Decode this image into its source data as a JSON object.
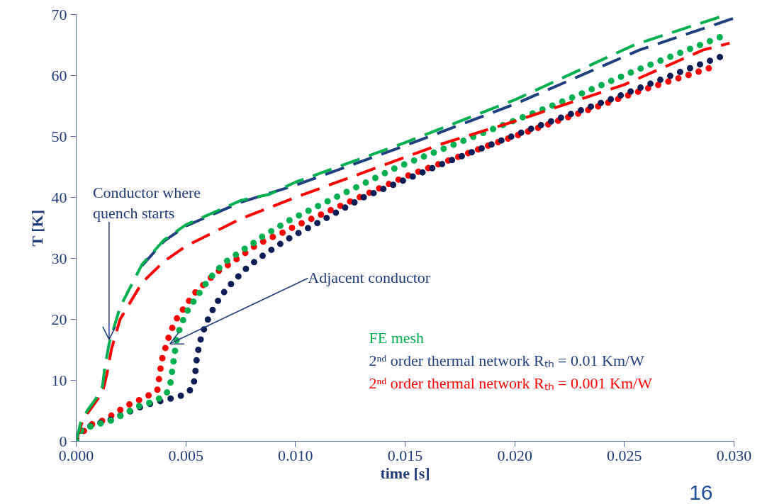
{
  "chart_data": {
    "type": "line",
    "xlabel": "time [s]",
    "ylabel": "T [K]",
    "xlim": [
      0,
      0.03
    ],
    "ylim": [
      0,
      70
    ],
    "xticks": [
      {
        "value": 0,
        "label": "0.000"
      },
      {
        "value": 0.005,
        "label": "0.005"
      },
      {
        "value": 0.01,
        "label": "0.010"
      },
      {
        "value": 0.015,
        "label": "0.015"
      },
      {
        "value": 0.02,
        "label": "0.020"
      },
      {
        "value": 0.025,
        "label": "0.025"
      },
      {
        "value": 0.03,
        "label": "0.030"
      }
    ],
    "yticks": [
      0,
      10,
      20,
      30,
      40,
      50,
      60,
      70
    ],
    "grid": false,
    "legend": "bottom right",
    "marker": "none",
    "series": [
      {
        "name": "FE mesh",
        "color": "#00b050",
        "line_style": "dashed",
        "x": [
          0,
          0.0002,
          0.0005,
          0.0009,
          0.0012,
          0.0013,
          0.0015,
          0.002,
          0.003,
          0.004,
          0.005,
          0.0075,
          0.0088,
          0.01,
          0.015,
          0.02,
          0.0255,
          0.0297
        ],
        "values": [
          0,
          3,
          5,
          7,
          9,
          12,
          16,
          22,
          29,
          33,
          35.5,
          39.5,
          40.5,
          42.5,
          49,
          56,
          65.1,
          70
        ]
      },
      {
        "name": "2ⁿᵈ order thermal network Rₜₕ = 0.01 Km/W",
        "color": "#1f3f7f",
        "line_style": "dashed",
        "x": [
          0.003,
          0.004,
          0.005,
          0.0075,
          0.01,
          0.015,
          0.02,
          0.0257,
          0.03
        ],
        "values": [
          28.8,
          32.8,
          35.3,
          39.2,
          42,
          48.5,
          55.3,
          64.2,
          69.4
        ]
      },
      {
        "name": "2ⁿᵈ order thermal network Rₜₕ =  0.001 Km/W",
        "color": "#ff0000",
        "line_style": "dashed",
        "x": [
          0,
          0.0003,
          0.0008,
          0.0012,
          0.0014,
          0.0016,
          0.002,
          0.003,
          0.004,
          0.005,
          0.0075,
          0.01,
          0.0166,
          0.02,
          0.025,
          0.0286,
          0.0298
        ],
        "values": [
          0,
          3.5,
          6,
          8,
          11,
          15,
          20,
          26,
          29.5,
          32,
          36.5,
          40,
          48.7,
          52.5,
          58.5,
          64.2,
          65.3
        ]
      },
      {
        "color": "#00b050",
        "line_style": "dotted",
        "x": [
          0,
          0.00026,
          0.0009,
          0.0016,
          0.0022,
          0.0028,
          0.0035,
          0.0041,
          0.0043,
          0.0044,
          0.0045,
          0.0046,
          0.0048,
          0.0051,
          0.0055,
          0.0059,
          0.0063,
          0.0068,
          0.0074,
          0.008,
          0.0085,
          0.0091,
          0.0097,
          0.0103,
          0.0146,
          0.0185,
          0.0223,
          0.0255,
          0.0295
        ],
        "values": [
          0.2,
          2,
          2.7,
          3.4,
          4.5,
          5.7,
          6.5,
          7.6,
          9.6,
          12.1,
          14.7,
          17.1,
          19.3,
          21.6,
          23.7,
          25.8,
          27.6,
          29.4,
          30.9,
          32.3,
          33.6,
          34.9,
          36.2,
          37.3,
          44.9,
          50.5,
          55.9,
          60.8,
          66.5
        ]
      },
      {
        "color": "#0c1e55",
        "line_style": "dotted",
        "x": [
          0,
          0.00026,
          0.0009,
          0.00155,
          0.00285,
          0.0035,
          0.0041,
          0.0048,
          0.00533,
          0.00543,
          0.0055,
          0.00563,
          0.00585,
          0.0061,
          0.00646,
          0.00685,
          0.0073,
          0.0078,
          0.00837,
          0.0089,
          0.00953,
          0.0101,
          0.0107,
          0.0131,
          0.0169,
          0.0207,
          0.0246,
          0.0277,
          0.0297
        ],
        "values": [
          0.2,
          2,
          2.8,
          3.5,
          5.5,
          6.3,
          6.8,
          7.5,
          8.7,
          11.2,
          13.7,
          16.2,
          18.6,
          20.8,
          23,
          25,
          26.7,
          28.5,
          30.1,
          31.4,
          32.9,
          34.1,
          35.2,
          40,
          45.8,
          51.2,
          56.4,
          60.8,
          63.5
        ]
      },
      {
        "color": "#ff0000",
        "line_style": "dotted",
        "x": [
          0,
          0.00065,
          0.0013,
          0.0019,
          0.0025,
          0.0031,
          0.0037,
          0.0038,
          0.0039,
          0.0041,
          0.0043,
          0.0046,
          0.005,
          0.0054,
          0.0059,
          0.0064,
          0.007,
          0.0076,
          0.0081,
          0.0087,
          0.0094,
          0.01,
          0.015,
          0.0188,
          0.0227,
          0.0259,
          0.0292
        ],
        "values": [
          0.5,
          2.7,
          3.5,
          4.9,
          6.2,
          7.1,
          8.4,
          10.8,
          13.3,
          15.7,
          18,
          20.2,
          22.3,
          24.3,
          26,
          27.7,
          29.1,
          30.6,
          31.9,
          33.1,
          34.2,
          35.3,
          43.4,
          48.5,
          53.5,
          57.7,
          61.6
        ]
      }
    ],
    "annotations": [
      {
        "text": "Conductor where\nquench starts",
        "x": 0.0015,
        "y": 16
      },
      {
        "text": "Adjacent conductor",
        "x": 0.0041,
        "y": 15.7
      },
      "16"
    ]
  }
}
